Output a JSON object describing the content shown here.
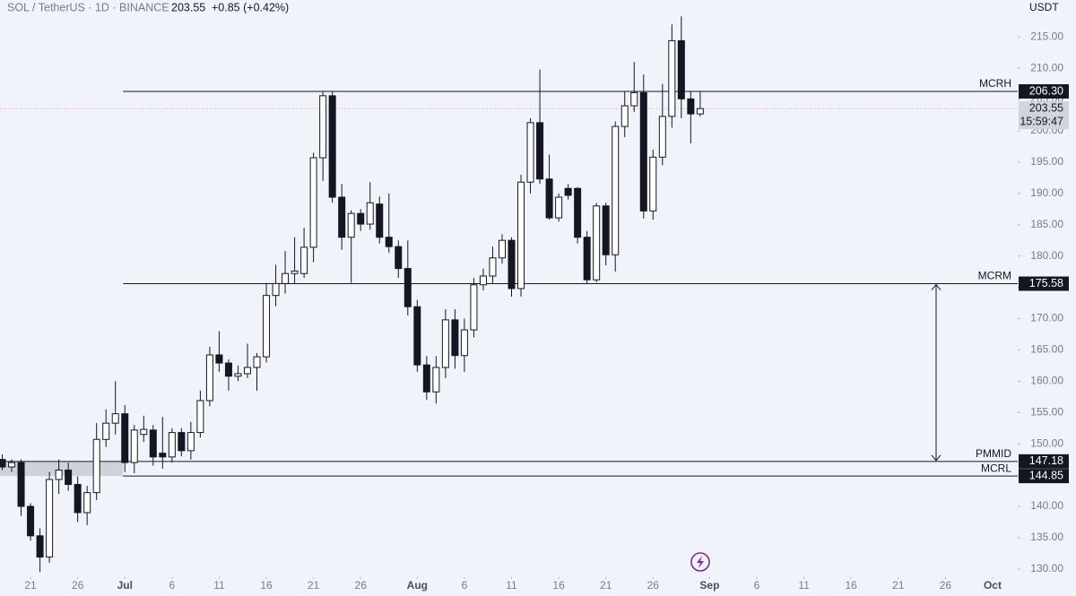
{
  "chart_data": {
    "type": "candlestick",
    "header": {
      "symbol": "SOL / TetherUS · 1D · BINANCE",
      "change": "+0.85 (+0.42%)"
    },
    "currency": "USDT",
    "x": [
      "Jun 18",
      "Jun 19",
      "Jun 20",
      "Jun 21",
      "Jun 22",
      "Jun 23",
      "Jun 24",
      "Jun 25",
      "Jun 26",
      "Jun 27",
      "Jun 28",
      "Jun 29",
      "Jun 30",
      "Jul 1",
      "Jul 2",
      "Jul 3",
      "Jul 4",
      "Jul 5",
      "Jul 6",
      "Jul 7",
      "Jul 8",
      "Jul 9",
      "Jul 10",
      "Jul 11",
      "Jul 12",
      "Jul 13",
      "Jul 14",
      "Jul 15",
      "Jul 16",
      "Jul 17",
      "Jul 18",
      "Jul 19",
      "Jul 20",
      "Jul 21",
      "Jul 22",
      "Jul 23",
      "Jul 24",
      "Jul 25",
      "Jul 26",
      "Jul 27",
      "Jul 28",
      "Jul 29",
      "Jul 30",
      "Jul 31",
      "Aug 1",
      "Aug 2",
      "Aug 3",
      "Aug 4",
      "Aug 5",
      "Aug 6",
      "Aug 7",
      "Aug 8",
      "Aug 9",
      "Aug 10",
      "Aug 11",
      "Aug 12",
      "Aug 13",
      "Aug 14",
      "Aug 15",
      "Aug 16",
      "Aug 17",
      "Aug 18",
      "Aug 19",
      "Aug 20",
      "Aug 21",
      "Aug 22",
      "Aug 23",
      "Aug 24",
      "Aug 25",
      "Aug 26",
      "Aug 27",
      "Aug 28",
      "Aug 29",
      "Aug 30",
      "Aug 31"
    ],
    "open": [
      147.5,
      146.3,
      147,
      140,
      135.3,
      131.9,
      144.3,
      145.8,
      143.5,
      139,
      142.2,
      150.7,
      153.3,
      154.8,
      147,
      151.5,
      152.2,
      148.5,
      147.9,
      151.8,
      148.9,
      151.8,
      156.9,
      164.2,
      162.9,
      160.8,
      161.2,
      162.2,
      163.9,
      173.7,
      175.6,
      177.2,
      177.2,
      181.4,
      195.7,
      205.6,
      189.4,
      183,
      186.8,
      185.1,
      188.3,
      183,
      181.5,
      178,
      171.9,
      162.6,
      158.3,
      162.2,
      169.8,
      164.1,
      168.2,
      175.4,
      176.8,
      179.7,
      182.5,
      174.8,
      191.8,
      201.3,
      192.3,
      186.1,
      190.8,
      190.8,
      183,
      176.2,
      188,
      180.2,
      200.7,
      204,
      206.1,
      187.2,
      195.8,
      202.3,
      214.4,
      205.1,
      202.7
    ],
    "high": [
      148.3,
      147.5,
      147.5,
      140.5,
      136.5,
      145.5,
      147.5,
      147,
      144.8,
      143.3,
      153.3,
      155.5,
      160,
      156.2,
      153,
      154.5,
      153,
      154.3,
      152.5,
      152.5,
      153.5,
      158.5,
      165.5,
      168,
      163.5,
      162.5,
      166,
      164.5,
      175.7,
      178.6,
      180.8,
      183,
      184.5,
      196.5,
      206.3,
      206.3,
      191.5,
      187.3,
      187.5,
      191.8,
      189.5,
      190,
      182.5,
      182.5,
      173,
      164,
      164,
      171.5,
      171.5,
      170,
      176.5,
      178,
      181.5,
      183.5,
      183,
      193,
      202,
      209.8,
      196.2,
      190,
      191.5,
      191,
      184,
      188.5,
      188.5,
      201.5,
      206.3,
      211,
      209,
      197,
      207.5,
      217,
      218.3,
      206.3,
      206.3
    ],
    "low": [
      145.8,
      145.5,
      138.5,
      134.5,
      129.5,
      131,
      142,
      142.5,
      137.5,
      137,
      141,
      149.5,
      151.5,
      145.5,
      145.3,
      150.3,
      146.5,
      146,
      147,
      148,
      147.5,
      151,
      156,
      161.5,
      158.5,
      160,
      160.5,
      158.5,
      163,
      172,
      174,
      175.5,
      176.5,
      179,
      192,
      188.5,
      181,
      175.7,
      184,
      184.2,
      182,
      180.5,
      176.5,
      170.5,
      161.5,
      157,
      156.4,
      160.5,
      162,
      161.5,
      167,
      174.5,
      175.5,
      178.8,
      173.5,
      173.5,
      190,
      191.5,
      185.8,
      185.5,
      189,
      182,
      175.5,
      175.8,
      178.5,
      177.5,
      199,
      203,
      186,
      185.8,
      194.5,
      200.5,
      202,
      198,
      202.3
    ],
    "close": [
      146.3,
      147,
      140,
      135.3,
      131.9,
      144.3,
      145.8,
      143.5,
      139,
      142.2,
      150.7,
      153.3,
      154.8,
      147,
      152.2,
      152.3,
      147.9,
      147.9,
      151.8,
      148.9,
      151.8,
      156.9,
      164.2,
      162.9,
      160.8,
      161.2,
      162.2,
      163.9,
      173.7,
      175.6,
      177.2,
      177.6,
      181.4,
      195.7,
      205.6,
      189.4,
      183,
      186.8,
      185.1,
      188.5,
      183,
      181.5,
      178,
      171.9,
      162.6,
      158.3,
      162.2,
      169.8,
      164.1,
      168.2,
      175.4,
      176.8,
      179.7,
      182.5,
      174.8,
      191.8,
      201.3,
      192.3,
      186.1,
      189.4,
      189.7,
      183,
      176.2,
      188,
      180.2,
      200.7,
      204,
      206.1,
      187.2,
      195.8,
      202.3,
      214.4,
      205.1,
      202.7,
      203.55
    ],
    "colors": {
      "up": "#ffffff",
      "down": "#131722",
      "outline": "#131722"
    },
    "xlim": [
      "Jun 18",
      "Oct 3"
    ],
    "xticks": [
      {
        "value": "Jun 21",
        "label": "21"
      },
      {
        "value": "Jun 26",
        "label": "26"
      },
      {
        "value": "Jul 1",
        "label": "Jul"
      },
      {
        "value": "Jul 6",
        "label": "6"
      },
      {
        "value": "Jul 11",
        "label": "11"
      },
      {
        "value": "Jul 16",
        "label": "16"
      },
      {
        "value": "Jul 21",
        "label": "21"
      },
      {
        "value": "Jul 26",
        "label": "26"
      },
      {
        "value": "Aug 1",
        "label": "Aug"
      },
      {
        "value": "Aug 6",
        "label": "6"
      },
      {
        "value": "Aug 11",
        "label": "11"
      },
      {
        "value": "Aug 16",
        "label": "16"
      },
      {
        "value": "Aug 21",
        "label": "21"
      },
      {
        "value": "Aug 26",
        "label": "26"
      },
      {
        "value": "Sep 1",
        "label": "Sep"
      },
      {
        "value": "Sep 6",
        "label": "6"
      },
      {
        "value": "Sep 11",
        "label": "11"
      },
      {
        "value": "Sep 16",
        "label": "16"
      },
      {
        "value": "Sep 21",
        "label": "21"
      },
      {
        "value": "Sep 26",
        "label": "26"
      },
      {
        "value": "Oct 1",
        "label": "Oct"
      }
    ],
    "ylim": [
      126.4,
      220.9
    ],
    "yticks": [
      {
        "value": 130,
        "label": "130.00"
      },
      {
        "value": 135,
        "label": "135.00"
      },
      {
        "value": 140,
        "label": "140.00"
      },
      {
        "value": 145,
        "label": "145.00"
      },
      {
        "value": 150,
        "label": "150.00"
      },
      {
        "value": 155,
        "label": "155.00"
      },
      {
        "value": 160,
        "label": "160.00"
      },
      {
        "value": 165,
        "label": "165.00"
      },
      {
        "value": 170,
        "label": "170.00"
      },
      {
        "value": 175,
        "label": "175.00"
      },
      {
        "value": 180,
        "label": "180.00"
      },
      {
        "value": 185,
        "label": "185.00"
      },
      {
        "value": 190,
        "label": "190.00"
      },
      {
        "value": 195,
        "label": "195.00"
      },
      {
        "value": 200,
        "label": "200.00"
      },
      {
        "value": 205,
        "label": "205.00"
      },
      {
        "value": 210,
        "label": "210.00"
      },
      {
        "value": 215,
        "label": "215.00"
      }
    ],
    "levels": {
      "names": [
        "MCRH",
        "MCRM",
        "PMMID",
        "MCRL"
      ],
      "values": [
        206.3,
        175.58,
        147.18,
        144.85
      ],
      "value_labels": [
        "206.30",
        "175.58",
        "147.18",
        "144.85"
      ]
    },
    "last_price": {
      "value": 203.55,
      "label": "203.55",
      "countdown": "15:59:47"
    }
  }
}
